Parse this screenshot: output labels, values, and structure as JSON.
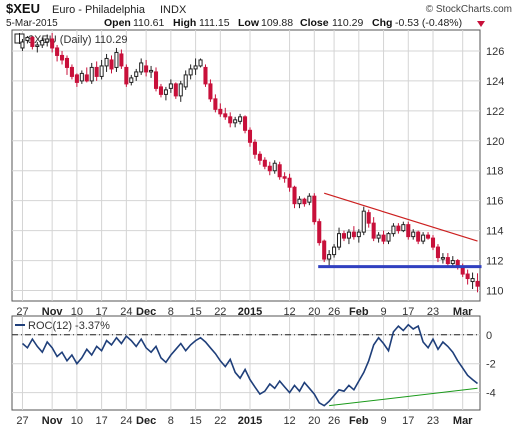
{
  "header": {
    "symbol": "$XEU",
    "name": "Euro - Philadelphia",
    "exchange": "INDX",
    "watermark": "© StockCharts.com",
    "date": "5-Mar-2015",
    "open_label": "Open",
    "open": "110.61",
    "high_label": "High",
    "high": "111.15",
    "low_label": "Low",
    "low": "109.88",
    "close_label": "Close",
    "close": "110.29",
    "chg_label": "Chg",
    "chg": "-0.53 (-0.48%)"
  },
  "colors": {
    "up": "#222222",
    "down": "#c8103a",
    "doji": "#111111",
    "support": "#3040c0",
    "resistance": "#cc2020",
    "roc_line": "#1f3f7a",
    "roc_trend": "#1a9a1a",
    "grid": "#d4d4d4"
  },
  "chart_data": [
    {
      "type": "candlestick",
      "legend": "$XEU (Daily) 110.29",
      "y_ticks": [
        "110",
        "112",
        "114",
        "116",
        "118",
        "120",
        "122",
        "124",
        "126"
      ],
      "ylim": [
        109.3,
        127.4
      ],
      "x_labels": [
        "27",
        "Nov",
        "10",
        "17",
        "24",
        "Dec",
        "8",
        "15",
        "22",
        "2015",
        "12",
        "20",
        "26",
        "Feb",
        "9",
        "17",
        "23",
        "Mar"
      ],
      "x_label_bold": [
        false,
        true,
        false,
        false,
        false,
        true,
        false,
        false,
        false,
        true,
        false,
        false,
        false,
        true,
        false,
        false,
        false,
        true
      ],
      "x_label_index": [
        0,
        6,
        11,
        16,
        21,
        25,
        30,
        35,
        40,
        46,
        54,
        59,
        63,
        68,
        73,
        78,
        83,
        89
      ],
      "n_sessions": 93,
      "candles": [
        [
          126.2,
          126.8,
          126.0,
          126.6
        ],
        [
          126.7,
          127.0,
          126.5,
          126.9
        ],
        [
          126.9,
          127.0,
          126.1,
          126.3
        ],
        [
          126.3,
          126.6,
          125.9,
          126.4
        ],
        [
          126.4,
          126.9,
          126.2,
          126.7
        ],
        [
          126.6,
          127.1,
          126.3,
          126.8
        ],
        [
          126.8,
          127.2,
          125.9,
          126.2
        ],
        [
          126.2,
          126.4,
          125.3,
          125.7
        ],
        [
          125.7,
          126.0,
          125.1,
          125.4
        ],
        [
          125.5,
          125.7,
          124.4,
          124.9
        ],
        [
          124.9,
          125.1,
          124.1,
          124.3
        ],
        [
          124.4,
          124.5,
          123.6,
          123.9
        ],
        [
          124.0,
          124.7,
          123.8,
          124.5
        ],
        [
          124.4,
          124.9,
          123.9,
          124.0
        ],
        [
          124.0,
          125.2,
          123.8,
          124.9
        ],
        [
          124.9,
          125.3,
          124.0,
          124.3
        ],
        [
          124.3,
          125.4,
          124.1,
          125.0
        ],
        [
          125.0,
          125.8,
          124.6,
          125.5
        ],
        [
          125.4,
          125.7,
          124.5,
          124.8
        ],
        [
          124.9,
          126.2,
          124.6,
          125.9
        ],
        [
          125.8,
          126.1,
          124.8,
          125.0
        ],
        [
          124.9,
          125.1,
          123.6,
          123.8
        ],
        [
          123.9,
          124.4,
          123.7,
          124.2
        ],
        [
          124.3,
          124.8,
          124.0,
          124.6
        ],
        [
          124.6,
          125.5,
          124.4,
          125.2
        ],
        [
          125.0,
          125.4,
          124.3,
          124.6
        ],
        [
          124.6,
          125.0,
          124.2,
          124.7
        ],
        [
          124.6,
          124.9,
          123.3,
          123.5
        ],
        [
          123.6,
          123.8,
          122.9,
          123.1
        ],
        [
          123.1,
          123.6,
          122.7,
          123.4
        ],
        [
          123.5,
          124.1,
          123.2,
          123.8
        ],
        [
          123.8,
          123.9,
          122.8,
          123.0
        ],
        [
          123.0,
          124.0,
          122.6,
          123.8
        ],
        [
          123.6,
          124.7,
          123.4,
          124.4
        ],
        [
          124.4,
          125.1,
          124.1,
          124.8
        ],
        [
          124.8,
          125.5,
          124.4,
          125.0
        ],
        [
          125.0,
          125.5,
          124.9,
          125.4
        ],
        [
          124.9,
          125.1,
          123.6,
          123.8
        ],
        [
          123.8,
          124.1,
          122.6,
          122.8
        ],
        [
          122.8,
          123.1,
          121.9,
          122.1
        ],
        [
          122.1,
          122.5,
          121.6,
          121.8
        ],
        [
          121.8,
          122.2,
          121.4,
          121.6
        ],
        [
          121.6,
          121.9,
          120.9,
          121.2
        ],
        [
          121.2,
          121.6,
          120.9,
          121.4
        ],
        [
          121.3,
          121.8,
          121.1,
          121.6
        ],
        [
          121.6,
          121.7,
          120.5,
          120.7
        ],
        [
          120.7,
          120.9,
          119.6,
          119.9
        ],
        [
          119.9,
          120.1,
          118.8,
          119.1
        ],
        [
          119.1,
          119.3,
          118.4,
          118.7
        ],
        [
          118.7,
          118.9,
          118.1,
          118.3
        ],
        [
          118.3,
          118.6,
          117.7,
          118.0
        ],
        [
          118.0,
          118.7,
          117.8,
          118.5
        ],
        [
          118.4,
          118.6,
          117.4,
          117.6
        ],
        [
          117.6,
          117.9,
          117.2,
          117.5
        ],
        [
          117.5,
          117.8,
          116.6,
          116.9
        ],
        [
          116.9,
          117.0,
          115.5,
          115.8
        ],
        [
          115.8,
          116.3,
          115.5,
          116.1
        ],
        [
          116.1,
          116.2,
          115.6,
          115.8
        ],
        [
          115.9,
          116.5,
          115.7,
          116.3
        ],
        [
          116.3,
          116.5,
          114.4,
          114.6
        ],
        [
          114.6,
          114.8,
          113.0,
          113.2
        ],
        [
          113.3,
          113.4,
          111.9,
          112.1
        ],
        [
          112.1,
          112.7,
          111.6,
          112.4
        ],
        [
          112.4,
          113.1,
          112.2,
          112.9
        ],
        [
          112.9,
          114.2,
          112.7,
          113.8
        ],
        [
          113.8,
          114.0,
          113.3,
          113.5
        ],
        [
          113.5,
          114.1,
          113.1,
          113.9
        ],
        [
          113.9,
          114.3,
          113.4,
          113.6
        ],
        [
          113.6,
          114.1,
          113.2,
          113.9
        ],
        [
          113.9,
          115.6,
          113.7,
          115.3
        ],
        [
          115.2,
          115.4,
          114.2,
          114.5
        ],
        [
          114.5,
          114.9,
          113.3,
          113.5
        ],
        [
          113.5,
          113.9,
          113.2,
          113.7
        ],
        [
          113.7,
          114.0,
          113.1,
          113.3
        ],
        [
          113.3,
          113.9,
          113.1,
          113.8
        ],
        [
          113.8,
          114.5,
          113.6,
          114.3
        ],
        [
          114.3,
          114.5,
          113.8,
          114.0
        ],
        [
          114.0,
          114.6,
          113.9,
          114.4
        ],
        [
          114.4,
          114.6,
          113.4,
          113.6
        ],
        [
          113.6,
          114.1,
          113.4,
          113.9
        ],
        [
          113.9,
          114.0,
          113.1,
          113.3
        ],
        [
          113.3,
          113.9,
          113.1,
          113.7
        ],
        [
          113.7,
          113.9,
          113.4,
          113.5
        ],
        [
          113.5,
          113.7,
          112.7,
          112.9
        ],
        [
          112.9,
          113.1,
          111.9,
          112.2
        ],
        [
          112.1,
          112.5,
          111.8,
          112.2
        ],
        [
          112.2,
          112.5,
          111.6,
          111.8
        ],
        [
          111.8,
          112.3,
          111.6,
          112.0
        ],
        [
          112.0,
          112.1,
          111.4,
          111.6
        ],
        [
          111.6,
          111.8,
          110.9,
          111.1
        ],
        [
          111.1,
          111.4,
          110.4,
          110.8
        ],
        [
          110.6,
          111.2,
          110.1,
          110.8
        ],
        [
          110.61,
          111.15,
          109.88,
          110.29
        ]
      ],
      "annotations": {
        "support_level": 111.6,
        "support_from_index": 61,
        "resistance_start": [
          61,
          116.5
        ],
        "resistance_end": [
          92,
          113.3
        ]
      }
    },
    {
      "type": "line",
      "legend": "ROC(12) -3.37%",
      "y_ticks": [
        "-4",
        "-2",
        "0"
      ],
      "ylim": [
        -5.2,
        1.3
      ],
      "zero_line": 0,
      "x_labels": [
        "27",
        "Nov",
        "10",
        "17",
        "24",
        "Dec",
        "8",
        "15",
        "22",
        "2015",
        "12",
        "20",
        "26",
        "Feb",
        "9",
        "17",
        "23",
        "Mar"
      ],
      "values": [
        -0.6,
        -0.9,
        -0.3,
        -0.8,
        -1.2,
        -0.5,
        -0.9,
        -1.5,
        -1.2,
        -1.8,
        -1.4,
        -2.0,
        -1.6,
        -1.0,
        -1.4,
        -0.8,
        -1.1,
        -0.4,
        -0.7,
        -0.2,
        -0.6,
        -0.1,
        -0.4,
        -0.8,
        -0.3,
        -0.9,
        -1.2,
        -0.8,
        -1.6,
        -1.9,
        -1.4,
        -1.0,
        -0.6,
        -1.1,
        -0.7,
        -0.4,
        -0.2,
        -0.5,
        -0.9,
        -1.3,
        -1.8,
        -2.2,
        -1.7,
        -2.6,
        -3.0,
        -2.4,
        -3.1,
        -3.6,
        -4.1,
        -3.9,
        -3.4,
        -3.7,
        -3.2,
        -3.6,
        -4.0,
        -3.5,
        -3.9,
        -3.3,
        -3.7,
        -4.1,
        -4.7,
        -4.9,
        -4.6,
        -4.2,
        -3.8,
        -3.9,
        -3.5,
        -3.8,
        -3.2,
        -2.6,
        -1.8,
        -0.7,
        -0.2,
        -0.6,
        -1.1,
        0.2,
        0.6,
        0.3,
        0.7,
        0.4,
        0.6,
        -0.5,
        -0.9,
        -0.3,
        -1.0,
        -0.5,
        -0.8,
        -1.2,
        -1.8,
        -2.3,
        -2.8,
        -3.1,
        -3.37
      ],
      "trendline": {
        "start": [
          62,
          -4.9
        ],
        "end": [
          92,
          -3.7
        ]
      }
    }
  ]
}
